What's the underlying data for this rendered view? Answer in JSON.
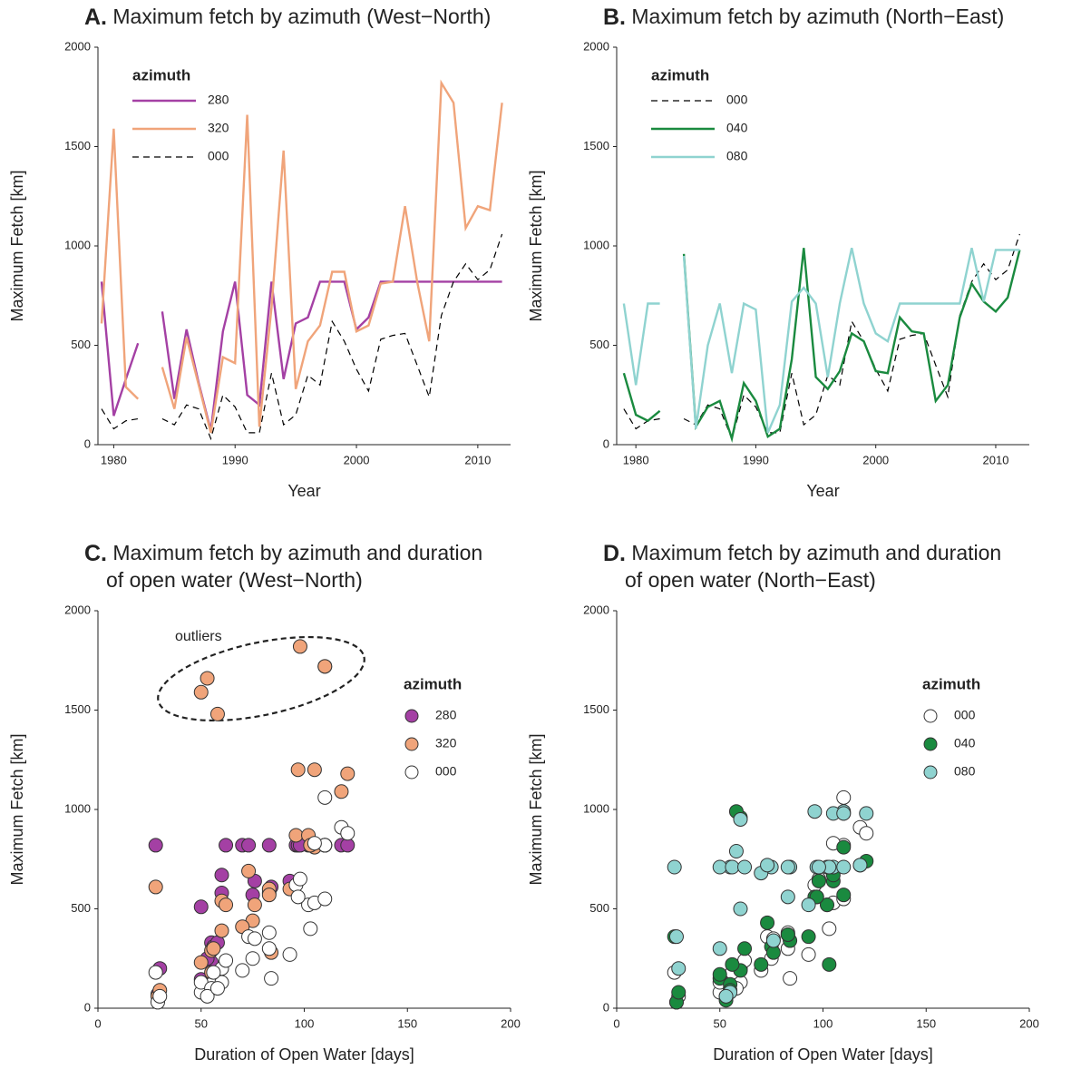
{
  "chart_data": [
    {
      "type": "line",
      "label": "A.",
      "title_lines": [
        "Maximum fetch by azimuth (West−North)"
      ],
      "x_label": "Year",
      "y_label": "Maximum Fetch [km]",
      "x": [
        1979,
        1980,
        1981,
        1982,
        1983,
        1984,
        1985,
        1986,
        1987,
        1988,
        1989,
        1990,
        1991,
        1992,
        1993,
        1994,
        1995,
        1996,
        1997,
        1998,
        1999,
        2000,
        2001,
        2002,
        2003,
        2004,
        2005,
        2006,
        2007,
        2008,
        2009,
        2010,
        2011,
        2012
      ],
      "xlim": [
        1978.7,
        2012.7
      ],
      "xticks": [
        1980,
        1990,
        2000,
        2010
      ],
      "ylim": [
        0,
        2000
      ],
      "yticks": [
        0,
        500,
        1000,
        1500,
        2000
      ],
      "legend_title": "azimuth",
      "legend": "upper left",
      "series": [
        {
          "name": "280",
          "color": "#a440a4",
          "dashed": false,
          "values": [
            820,
            145,
            330,
            510,
            null,
            670,
            230,
            580,
            310,
            70,
            570,
            820,
            250,
            200,
            820,
            330,
            610,
            640,
            820,
            820,
            820,
            580,
            640,
            820,
            820,
            820,
            820,
            820,
            820,
            820,
            820,
            820,
            820,
            820
          ]
        },
        {
          "name": "320",
          "color": "#f0a47a",
          "dashed": false,
          "values": [
            610,
            1590,
            290,
            230,
            null,
            390,
            180,
            540,
            300,
            60,
            440,
            410,
            1660,
            90,
            690,
            1480,
            280,
            520,
            600,
            870,
            870,
            570,
            600,
            810,
            820,
            1200,
            820,
            520,
            1820,
            1720,
            1090,
            1200,
            1180,
            1720
          ]
        },
        {
          "name": "000",
          "color": "#000000",
          "dashed": true,
          "values": [
            180,
            80,
            120,
            130,
            null,
            130,
            100,
            200,
            180,
            30,
            250,
            190,
            60,
            60,
            360,
            100,
            150,
            350,
            300,
            620,
            520,
            380,
            270,
            530,
            550,
            560,
            400,
            240,
            650,
            820,
            910,
            830,
            880,
            1060
          ]
        }
      ]
    },
    {
      "type": "line",
      "label": "B.",
      "title_lines": [
        "Maximum fetch by azimuth (North−East)"
      ],
      "x_label": "Year",
      "y_label": "Maximum Fetch [km]",
      "x": [
        1979,
        1980,
        1981,
        1982,
        1983,
        1984,
        1985,
        1986,
        1987,
        1988,
        1989,
        1990,
        1991,
        1992,
        1993,
        1994,
        1995,
        1996,
        1997,
        1998,
        1999,
        2000,
        2001,
        2002,
        2003,
        2004,
        2005,
        2006,
        2007,
        2008,
        2009,
        2010,
        2011,
        2012
      ],
      "xlim": [
        1978.4,
        2012.8
      ],
      "xticks": [
        1980,
        1990,
        2000,
        2010
      ],
      "ylim": [
        0,
        2000
      ],
      "yticks": [
        0,
        500,
        1000,
        1500,
        2000
      ],
      "legend_title": "azimuth",
      "legend": "upper left",
      "series": [
        {
          "name": "000",
          "color": "#000000",
          "dashed": true,
          "values": [
            180,
            80,
            120,
            130,
            null,
            130,
            100,
            200,
            180,
            30,
            250,
            190,
            60,
            60,
            360,
            100,
            150,
            350,
            300,
            620,
            520,
            380,
            270,
            530,
            550,
            560,
            400,
            240,
            650,
            820,
            910,
            830,
            880,
            1060
          ]
        },
        {
          "name": "040",
          "color": "#1a8a3f",
          "dashed": false,
          "values": [
            360,
            150,
            120,
            170,
            null,
            960,
            90,
            190,
            220,
            30,
            310,
            220,
            40,
            80,
            430,
            990,
            340,
            280,
            370,
            560,
            520,
            370,
            360,
            640,
            570,
            560,
            220,
            300,
            640,
            810,
            720,
            670,
            740,
            980
          ]
        },
        {
          "name": "080",
          "color": "#8fd3d0",
          "dashed": false,
          "values": [
            710,
            300,
            710,
            710,
            null,
            950,
            80,
            500,
            710,
            360,
            710,
            680,
            60,
            200,
            720,
            790,
            710,
            340,
            710,
            990,
            710,
            560,
            520,
            710,
            710,
            710,
            710,
            710,
            710,
            990,
            720,
            980,
            980,
            980
          ]
        }
      ]
    },
    {
      "type": "scatter",
      "label": "C.",
      "title_lines": [
        "Maximum fetch by azimuth and duration",
        "of open water (West−North)"
      ],
      "x_label": "Duration of Open Water [days]",
      "y_label": "Maximum Fetch [km]",
      "annotation": "outliers",
      "x": [
        28,
        50,
        55,
        50,
        60,
        55,
        60,
        56,
        29,
        75,
        70,
        53,
        30,
        73,
        58,
        84,
        76,
        83,
        96,
        102,
        83,
        93,
        105,
        110,
        97,
        103,
        62,
        98,
        110,
        118,
        105,
        121,
        110
      ],
      "xlim": [
        0,
        200
      ],
      "xticks": [
        0,
        50,
        100,
        150,
        200
      ],
      "ylim": [
        0,
        2000
      ],
      "yticks": [
        0,
        500,
        1000,
        1500,
        2000
      ],
      "legend_title": "azimuth",
      "legend": "center right",
      "series": [
        {
          "name": "280",
          "color": "#a440a4",
          "values": [
            820,
            145,
            330,
            510,
            670,
            230,
            580,
            310,
            70,
            570,
            820,
            250,
            200,
            820,
            330,
            610,
            640,
            820,
            820,
            820,
            580,
            640,
            820,
            820,
            820,
            820,
            820,
            820,
            820,
            820,
            820,
            820,
            820
          ]
        },
        {
          "name": "320",
          "color": "#f0a47a",
          "values": [
            610,
            1590,
            290,
            230,
            390,
            180,
            540,
            300,
            60,
            440,
            410,
            1660,
            90,
            690,
            1480,
            280,
            520,
            600,
            870,
            870,
            570,
            600,
            810,
            820,
            1200,
            820,
            520,
            1820,
            1720,
            1090,
            1200,
            1180,
            1720
          ]
        },
        {
          "name": "000",
          "color": "#ffffff",
          "values": [
            180,
            80,
            120,
            130,
            130,
            100,
            200,
            180,
            30,
            250,
            190,
            60,
            60,
            360,
            100,
            150,
            350,
            300,
            620,
            520,
            380,
            270,
            530,
            550,
            560,
            400,
            240,
            650,
            820,
            910,
            830,
            880,
            1060
          ]
        }
      ]
    },
    {
      "type": "scatter",
      "label": "D.",
      "title_lines": [
        "Maximum fetch by azimuth and duration",
        "of open water (North−East)"
      ],
      "x_label": "Duration of Open Water [days]",
      "y_label": "Maximum Fetch [km]",
      "x": [
        28,
        50,
        55,
        50,
        60,
        55,
        60,
        56,
        29,
        75,
        70,
        53,
        30,
        73,
        58,
        84,
        76,
        83,
        96,
        102,
        83,
        93,
        105,
        110,
        97,
        103,
        62,
        98,
        110,
        118,
        105,
        121,
        110
      ],
      "xlim": [
        0,
        200
      ],
      "xticks": [
        0,
        50,
        100,
        150,
        200
      ],
      "ylim": [
        0,
        2000
      ],
      "yticks": [
        0,
        500,
        1000,
        1500,
        2000
      ],
      "legend_title": "azimuth",
      "legend": "center right",
      "series": [
        {
          "name": "000",
          "color": "#ffffff",
          "values": [
            180,
            80,
            120,
            130,
            130,
            100,
            200,
            180,
            30,
            250,
            190,
            60,
            60,
            360,
            100,
            150,
            350,
            300,
            620,
            520,
            380,
            270,
            530,
            550,
            560,
            400,
            240,
            650,
            820,
            910,
            830,
            880,
            1060
          ]
        },
        {
          "name": "040",
          "color": "#1a8a3f",
          "values": [
            360,
            150,
            120,
            170,
            960,
            90,
            190,
            220,
            30,
            310,
            220,
            40,
            80,
            430,
            990,
            340,
            280,
            370,
            560,
            520,
            370,
            360,
            640,
            570,
            560,
            220,
            300,
            640,
            810,
            720,
            670,
            740,
            980
          ]
        },
        {
          "name": "080",
          "color": "#8fd3d0",
          "values": [
            710,
            300,
            710,
            710,
            950,
            80,
            500,
            710,
            360,
            710,
            680,
            60,
            200,
            720,
            790,
            710,
            340,
            710,
            990,
            710,
            560,
            520,
            710,
            710,
            710,
            710,
            710,
            710,
            990,
            720,
            980,
            980,
            980
          ]
        }
      ]
    }
  ]
}
